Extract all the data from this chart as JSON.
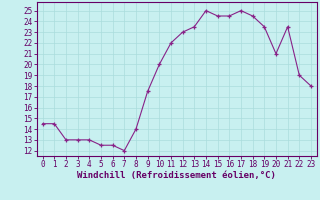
{
  "hours": [
    0,
    1,
    2,
    3,
    4,
    5,
    6,
    7,
    8,
    9,
    10,
    11,
    12,
    13,
    14,
    15,
    16,
    17,
    18,
    19,
    20,
    21,
    22,
    23
  ],
  "values": [
    14.5,
    14.5,
    13.0,
    13.0,
    13.0,
    12.5,
    12.5,
    12.0,
    14.0,
    17.5,
    20.0,
    22.0,
    23.0,
    23.5,
    25.0,
    24.5,
    24.5,
    25.0,
    24.5,
    23.5,
    21.0,
    23.5,
    19.0,
    18.0
  ],
  "line_color": "#882288",
  "marker": "+",
  "bg_color": "#c8f0f0",
  "grid_color": "#aadddd",
  "xlabel": "Windchill (Refroidissement éolien,°C)",
  "ylabel_ticks": [
    12,
    13,
    14,
    15,
    16,
    17,
    18,
    19,
    20,
    21,
    22,
    23,
    24,
    25
  ],
  "xlim": [
    -0.5,
    23.5
  ],
  "ylim": [
    11.5,
    25.8
  ],
  "tick_fontsize": 5.5,
  "label_fontsize": 6.5,
  "tick_color": "#660066",
  "spine_color": "#660066"
}
